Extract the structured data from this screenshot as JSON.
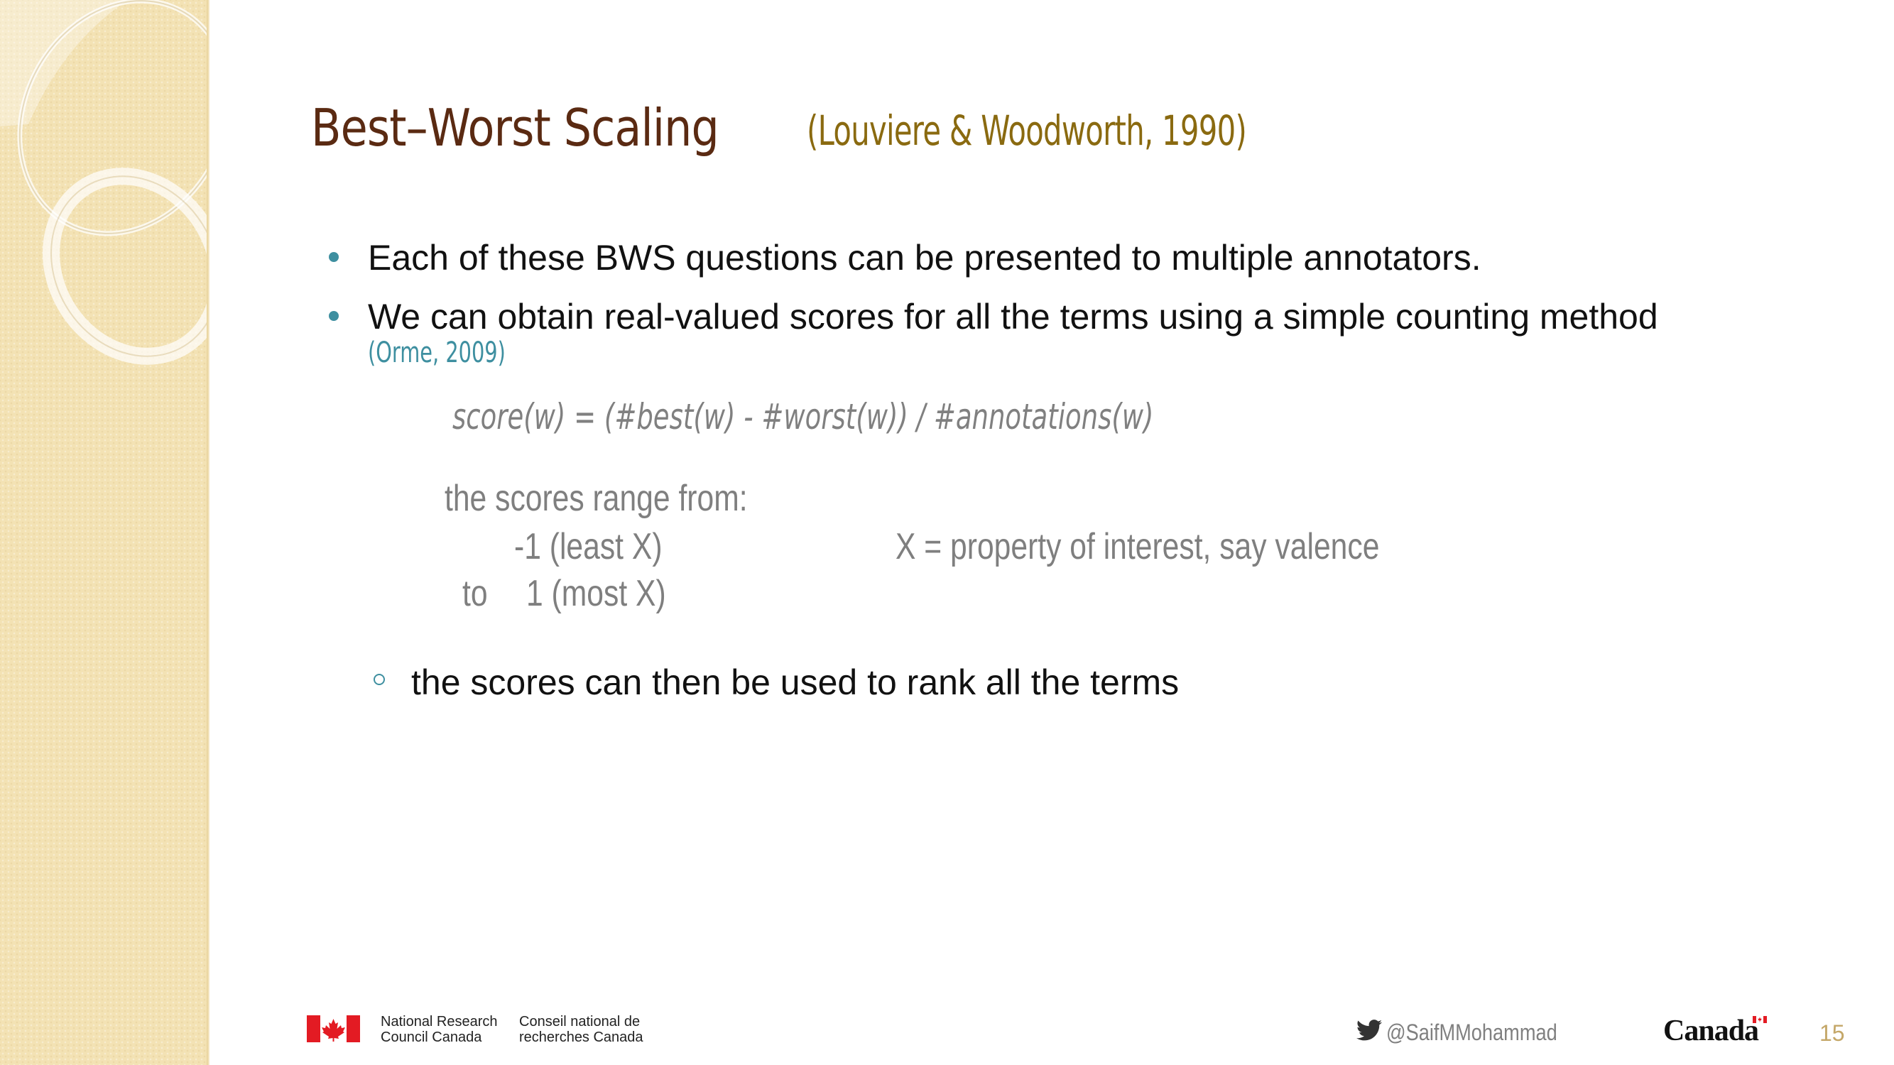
{
  "slide": {
    "title": "Best–Worst Scaling",
    "title_citation": "(Louviere & Woodworth, 1990)",
    "bullets": [
      "Each of these BWS questions can be presented to multiple annotators.",
      "We can obtain real-valued scores for all the terms using a simple counting method"
    ],
    "bullet2_citation": "(Orme, 2009)",
    "formula": "score(w) = (#best(w) - #worst(w)) / #annotations(w)",
    "range_intro": "the scores range from:",
    "range_low": "-1 (least X)",
    "range_high_to": "to",
    "range_high": "1 (most X)",
    "property_note": "X = property of interest, say valence",
    "sub_bullet": "the scores can then be used to rank all the terms"
  },
  "footer": {
    "org_en_line1": "National Research",
    "org_en_line2": "Council Canada",
    "org_fr_line1": "Conseil national de",
    "org_fr_line2": "recherches Canada",
    "twitter_handle": "@SaifMMohammad",
    "canada_wordmark": "Canada",
    "page_number": "15"
  },
  "colors": {
    "title": "#5a2a12",
    "title_citation": "#8a6a10",
    "accent": "#3e8fa0",
    "gray_text": "#7f7f7f",
    "sidebar": "#f3e2b4",
    "page_number": "#c4a768",
    "flag_red": "#e31b23"
  },
  "icons": {
    "twitter": "twitter-bird-icon",
    "flag": "canada-flag-icon"
  }
}
